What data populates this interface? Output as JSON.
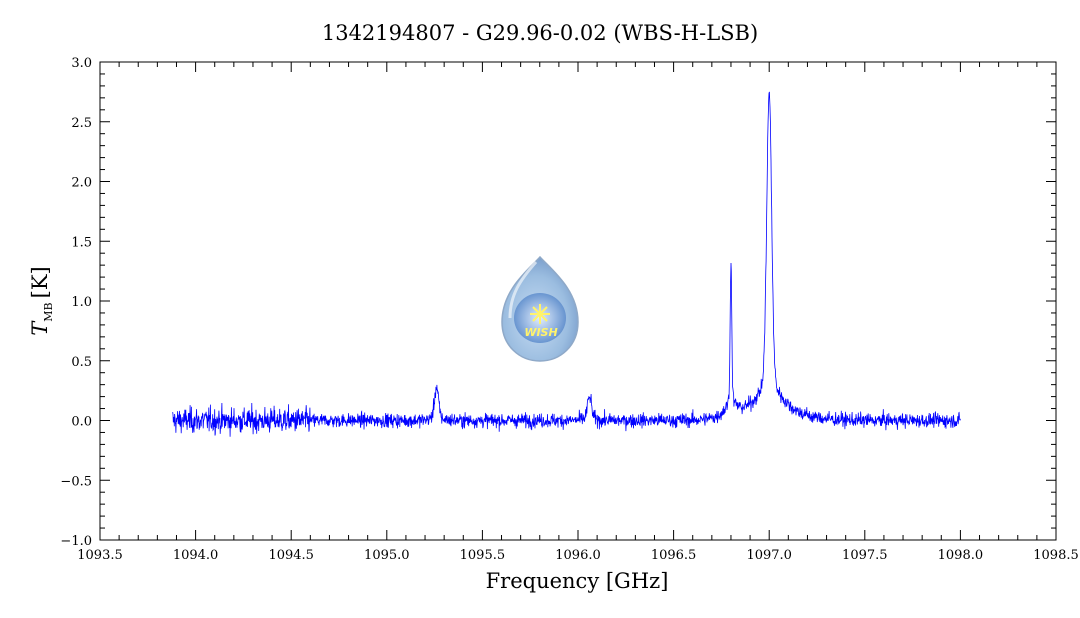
{
  "chart_data": {
    "type": "line",
    "title": "1342194807 - G29.96-0.02 (WBS-H-LSB)",
    "xlabel": "Frequency [GHz]",
    "ylabel": "T",
    "ylabel_subscript": "MB",
    "ylabel_unit": "[K]",
    "xlim": [
      1093.5,
      1098.5
    ],
    "ylim": [
      -1.0,
      3.0
    ],
    "x_ticks": [
      "1093.5",
      "1094.0",
      "1094.5",
      "1095.0",
      "1095.5",
      "1096.0",
      "1096.5",
      "1097.0",
      "1097.5",
      "1098.0",
      "1098.5"
    ],
    "y_ticks": [
      "-1.0",
      "-0.5",
      "0.0",
      "0.5",
      "1.0",
      "1.5",
      "2.0",
      "2.5",
      "3.0"
    ],
    "grid": false,
    "series": [
      {
        "color": "#0000ff",
        "x_range": [
          1093.88,
          1098.0
        ],
        "baseline": 0.0,
        "noise_rms": 0.05,
        "features": [
          {
            "center": 1095.26,
            "peak": 0.28
          },
          {
            "center": 1096.06,
            "peak": 0.2
          },
          {
            "center": 1096.8,
            "peak": 1.27
          },
          {
            "center": 1097.0,
            "peak": 2.75
          }
        ]
      }
    ],
    "logo_text": "WISH"
  }
}
